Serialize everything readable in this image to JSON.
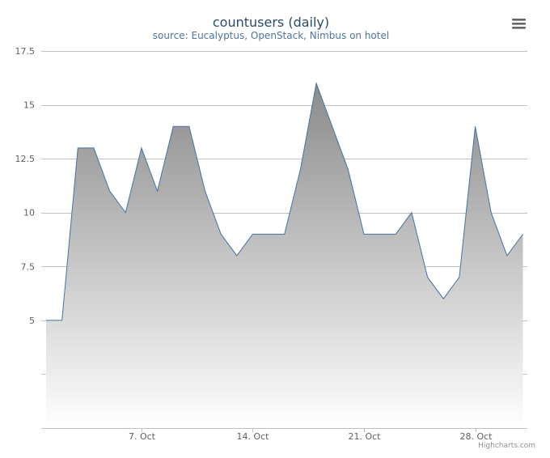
{
  "chart_data": {
    "type": "area",
    "title": "countusers (daily)",
    "subtitle": "source: Eucalyptus, OpenStack, Nimbus on hotel",
    "x": [
      "Oct 1",
      "Oct 2",
      "Oct 3",
      "Oct 4",
      "Oct 5",
      "Oct 6",
      "Oct 7",
      "Oct 8",
      "Oct 9",
      "Oct 10",
      "Oct 11",
      "Oct 12",
      "Oct 13",
      "Oct 14",
      "Oct 15",
      "Oct 16",
      "Oct 17",
      "Oct 18",
      "Oct 19",
      "Oct 20",
      "Oct 21",
      "Oct 22",
      "Oct 23",
      "Oct 24",
      "Oct 25",
      "Oct 26",
      "Oct 27",
      "Oct 28",
      "Oct 29",
      "Oct 30",
      "Oct 31"
    ],
    "series": [
      {
        "values": [
          5,
          5,
          13,
          13,
          11,
          10,
          13,
          11,
          14,
          14,
          11,
          9,
          8,
          9,
          9,
          9,
          12,
          16,
          14,
          12,
          9,
          9,
          9,
          10,
          7,
          6,
          7,
          14,
          10,
          8,
          9
        ]
      }
    ],
    "x_ticks": [
      "7. Oct",
      "14. Oct",
      "21. Oct",
      "28. Oct"
    ],
    "y_ticks": [
      "17.5",
      "15",
      "12.5",
      "10",
      "7.5",
      "5",
      "2.5",
      "0"
    ],
    "y_tick_values": [
      17.5,
      15,
      12.5,
      10,
      7.5,
      5,
      2.5,
      0
    ],
    "y_tick_labels_shown": [
      "17.5",
      "15",
      "12.5",
      "10",
      "7.5",
      "5"
    ],
    "ylim": [
      0,
      17.5
    ],
    "grid": true,
    "legend": "none",
    "colors": {
      "line": "#4572a7",
      "fill_top": "#8a8a8a",
      "fill_bottom": "#ffffff",
      "grid": "#c0c0c0",
      "title": "#274b6d",
      "subtitle": "#4d759e"
    },
    "credits": "Highcharts.com"
  },
  "menu": {
    "icon": "hamburger-menu-icon"
  }
}
